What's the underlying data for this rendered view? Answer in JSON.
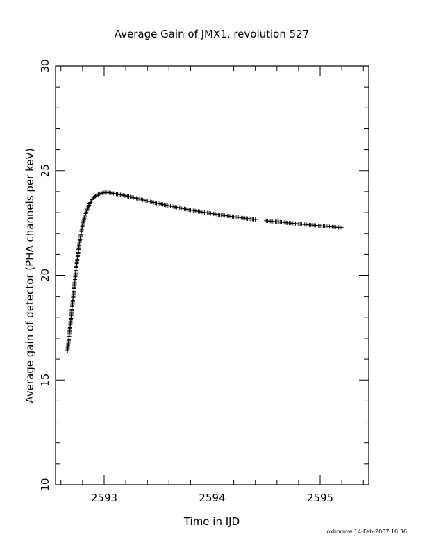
{
  "chart_data": {
    "type": "scatter",
    "title": "Average Gain of JMX1, revolution 527",
    "xlabel": "Time in IJD",
    "ylabel": "Average gain of detector (PHA channels per keV)",
    "xlim": [
      2592.55,
      2595.45
    ],
    "ylim": [
      10,
      30
    ],
    "x_ticks": [
      2593,
      2594,
      2595
    ],
    "x_tick_labels": [
      "2593",
      "2594",
      "2595"
    ],
    "y_ticks": [
      10,
      15,
      20,
      25,
      30
    ],
    "y_tick_labels": [
      "10",
      "15",
      "20",
      "25",
      "30"
    ],
    "marker": "plus",
    "grid": false,
    "series": [
      {
        "color": "#000000",
        "points": [
          [
            2592.66,
            16.4
          ],
          [
            2592.67,
            16.8
          ],
          [
            2592.68,
            17.3
          ],
          [
            2592.69,
            17.8
          ],
          [
            2592.7,
            18.3
          ],
          [
            2592.71,
            18.8
          ],
          [
            2592.72,
            19.3
          ],
          [
            2592.73,
            19.8
          ],
          [
            2592.74,
            20.3
          ],
          [
            2592.75,
            20.7
          ],
          [
            2592.76,
            21.1
          ],
          [
            2592.77,
            21.5
          ],
          [
            2592.78,
            21.8
          ],
          [
            2592.79,
            22.1
          ],
          [
            2592.8,
            22.4
          ],
          [
            2592.82,
            22.8
          ],
          [
            2592.84,
            23.1
          ],
          [
            2592.86,
            23.35
          ],
          [
            2592.88,
            23.55
          ],
          [
            2592.9,
            23.7
          ],
          [
            2592.93,
            23.82
          ],
          [
            2592.96,
            23.9
          ],
          [
            2593.0,
            23.95
          ],
          [
            2593.05,
            23.95
          ],
          [
            2593.1,
            23.9
          ],
          [
            2593.15,
            23.85
          ],
          [
            2593.2,
            23.8
          ],
          [
            2593.3,
            23.68
          ],
          [
            2593.4,
            23.55
          ],
          [
            2593.5,
            23.43
          ],
          [
            2593.6,
            23.32
          ],
          [
            2593.7,
            23.22
          ],
          [
            2593.8,
            23.12
          ],
          [
            2593.9,
            23.03
          ],
          [
            2594.0,
            22.95
          ],
          [
            2594.1,
            22.87
          ],
          [
            2594.2,
            22.8
          ],
          [
            2594.3,
            22.73
          ],
          [
            2594.4,
            22.67
          ],
          [
            2594.5,
            22.61
          ],
          [
            2594.6,
            22.56
          ],
          [
            2594.7,
            22.51
          ],
          [
            2594.8,
            22.46
          ],
          [
            2594.9,
            22.41
          ],
          [
            2595.0,
            22.37
          ],
          [
            2595.1,
            22.32
          ],
          [
            2595.2,
            22.28
          ]
        ]
      }
    ]
  },
  "footer": "oxborrow 14-Feb-2007 10:36"
}
